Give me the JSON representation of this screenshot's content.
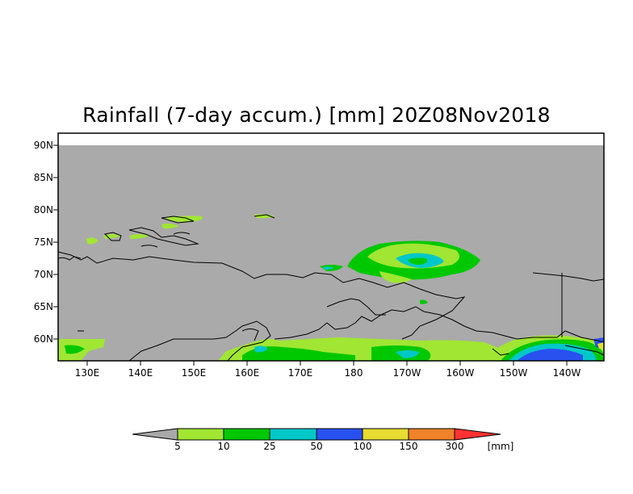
{
  "title": "Rainfall (7-day accum.) [mm] 20Z08Nov2018",
  "lat_labels": [
    "90N",
    "85N",
    "80N",
    "75N",
    "70N",
    "65N",
    "60N"
  ],
  "lon_labels": [
    "130E",
    "140E",
    "150E",
    "160E",
    "170E",
    "180",
    "170W",
    "160W",
    "150W",
    "140W"
  ],
  "legend": {
    "thresholds": [
      "5",
      "10",
      "25",
      "50",
      "100",
      "150",
      "300"
    ],
    "unit": "[mm]",
    "colors": [
      "#a9a9a9",
      "#a0e632",
      "#00c800",
      "#00c8c8",
      "#2851f0",
      "#e6dc32",
      "#f08228",
      "#ff3232"
    ]
  },
  "colors": {
    "land_ocean": "#aaaaaa",
    "frame": "#000000"
  }
}
